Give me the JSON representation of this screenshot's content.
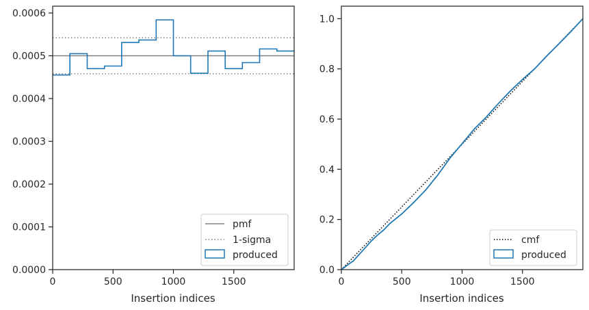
{
  "colors": {
    "hist": "#1f77b4",
    "pmf": "#808080",
    "sigma": "#808080",
    "cmf": "#000000",
    "axes": "#262626"
  },
  "chart_data": [
    {
      "type": "histogram-step",
      "xlabel": "Insertion indices",
      "ylabel": "",
      "xlim": [
        0,
        2000
      ],
      "ylim": [
        0,
        0.000616
      ],
      "xticks": [
        0,
        500,
        1000,
        1500
      ],
      "xtick_labels": [
        "0",
        "500",
        "1000",
        "1500"
      ],
      "yticks": [
        0,
        0.0001,
        0.0002,
        0.0003,
        0.0004,
        0.0005,
        0.0006
      ],
      "ytick_labels": [
        "0.0000",
        "0.0001",
        "0.0002",
        "0.0003",
        "0.0004",
        "0.0005",
        "0.0006"
      ],
      "grid": false,
      "legend_position": "lower right",
      "bin_edges": [
        0,
        143,
        286,
        429,
        571,
        714,
        857,
        1000,
        1143,
        1286,
        1429,
        1571,
        1714,
        1857,
        2000
      ],
      "series": [
        {
          "name": "produced",
          "style": "step",
          "values": [
            0.000455,
            0.000505,
            0.00047,
            0.000476,
            0.000531,
            0.000537,
            0.000584,
            0.0005,
            0.000459,
            0.000511,
            0.00047,
            0.000484,
            0.000516,
            0.000511
          ]
        }
      ],
      "reference_lines": [
        {
          "name": "pmf",
          "style": "solid",
          "y": 0.0005
        },
        {
          "name": "1-sigma",
          "style": "dotted",
          "y": 0.000542
        },
        {
          "name": "1-sigma",
          "style": "dotted",
          "y": 0.000458
        }
      ],
      "legend": [
        "pmf",
        "1-sigma",
        "produced"
      ]
    },
    {
      "type": "line",
      "xlabel": "Insertion indices",
      "ylabel": "",
      "xlim": [
        0,
        2000
      ],
      "ylim": [
        0,
        1.05
      ],
      "xticks": [
        0,
        500,
        1000,
        1500
      ],
      "xtick_labels": [
        "0",
        "500",
        "1000",
        "1500"
      ],
      "yticks": [
        0,
        0.2,
        0.4,
        0.6,
        0.8,
        1.0
      ],
      "ytick_labels": [
        "0.0",
        "0.2",
        "0.4",
        "0.6",
        "0.8",
        "1.0"
      ],
      "grid": false,
      "legend_position": "lower right",
      "series": [
        {
          "name": "cmf",
          "style": "dotted",
          "x": [
            0,
            2000
          ],
          "y": [
            0,
            1.0
          ]
        },
        {
          "name": "produced",
          "style": "solid",
          "x": [
            0,
            50,
            100,
            150,
            200,
            250,
            300,
            350,
            400,
            500,
            600,
            700,
            800,
            900,
            1000,
            1100,
            1200,
            1300,
            1400,
            1500,
            1600,
            1700,
            1800,
            1900,
            2000
          ],
          "y": [
            0,
            0.018,
            0.035,
            0.062,
            0.088,
            0.115,
            0.138,
            0.158,
            0.183,
            0.222,
            0.268,
            0.318,
            0.378,
            0.445,
            0.502,
            0.56,
            0.608,
            0.662,
            0.712,
            0.758,
            0.8,
            0.851,
            0.899,
            0.948,
            1.0
          ]
        }
      ],
      "legend": [
        "cmf",
        "produced"
      ]
    }
  ]
}
